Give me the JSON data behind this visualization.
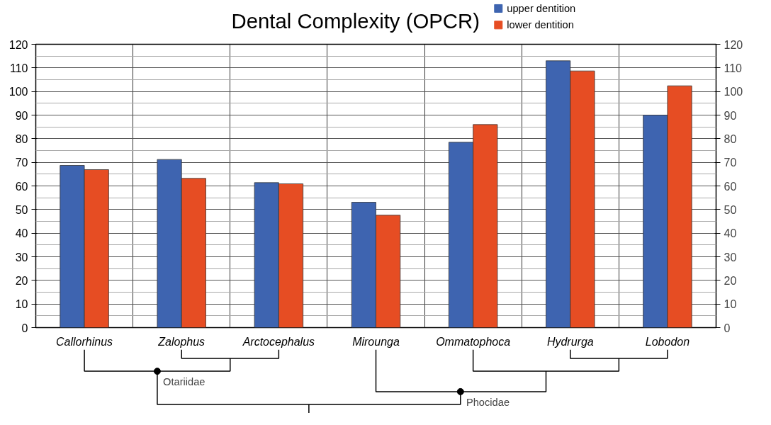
{
  "chart_data": {
    "type": "bar",
    "title": "Dental Complexity (OPCR)",
    "categories": [
      "Callorhinus",
      "Zalophus",
      "Arctocephalus",
      "Mirounga",
      "Ommatophoca",
      "Hydrurga",
      "Lobodon"
    ],
    "series": [
      {
        "name": "upper dentition",
        "color": "#3e64b0",
        "values": [
          68.7,
          71.2,
          61.4,
          53.1,
          78.5,
          113,
          90
        ]
      },
      {
        "name": "lower dentition",
        "color": "#e64d23",
        "values": [
          66.9,
          63.2,
          60.9,
          47.6,
          86,
          108.7,
          102.4
        ]
      }
    ],
    "ylim": [
      0,
      120
    ],
    "yticks": [
      0,
      10,
      20,
      30,
      40,
      50,
      60,
      70,
      80,
      90,
      100,
      110,
      120
    ],
    "y2lim": [
      0,
      120
    ],
    "y2ticks": [
      0,
      10,
      20,
      30,
      40,
      50,
      60,
      70,
      80,
      90,
      100,
      110,
      120
    ],
    "grid": true,
    "legend": "top right",
    "annotations": [
      "Otariidae",
      "Phocidae"
    ]
  }
}
